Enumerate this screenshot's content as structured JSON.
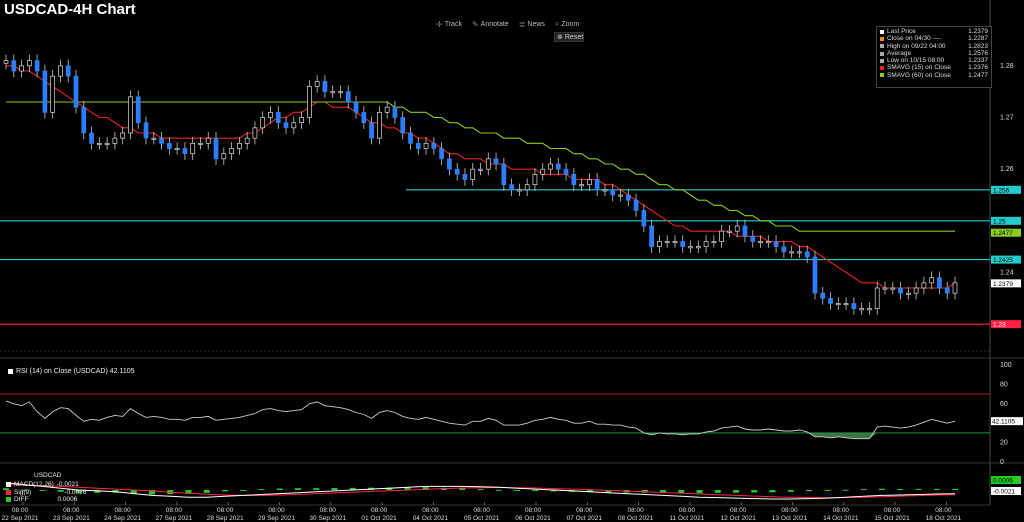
{
  "title": "USDCAD-4H Chart",
  "toolbar": {
    "track": "Track",
    "annotate": "Annotate",
    "news": "News",
    "zoom": "Zoom",
    "reset": "Reset"
  },
  "legend": [
    {
      "label": "Last Price",
      "value": "1.2379",
      "color": "#ffffff"
    },
    {
      "label": "Close on 04/30 ----",
      "value": "1.2287",
      "color": "#ff8800"
    },
    {
      "label": "High on 09/22 04:00",
      "value": "1.2823",
      "color": "#aaaaaa"
    },
    {
      "label": "Average",
      "value": "1.2576",
      "color": "#aaaaaa"
    },
    {
      "label": "Low on 10/15 08:00",
      "value": "1.2337",
      "color": "#aaaaaa"
    },
    {
      "label": "SMAVG (15)  on Close",
      "value": "1.2376",
      "color": "#ee2222"
    },
    {
      "label": "SMAVG (60)  on Close",
      "value": "1.2477",
      "color": "#88cc22"
    }
  ],
  "rsi_label": "RSI (14)  on Close (USDCAD) 42.1105",
  "macd_labels": {
    "header": "USDCAD",
    "macd": "MACD(12,26)",
    "macd_value": "-0.0021",
    "sig": "Sig(9)",
    "sig_value": "-0.0026",
    "diff": "DIFF",
    "diff_value": "0.0006"
  },
  "chart_data": [
    {
      "type": "candlestick",
      "title": "USDCAD-4H Chart",
      "ylim": [
        1.225,
        1.285
      ],
      "yticks": [
        "1.28",
        "1.27",
        "1.26",
        "1.24"
      ],
      "x_tick_labels": [
        [
          "08:00",
          "22 Sep 2021"
        ],
        [
          "08:00",
          "23 Sep 2021"
        ],
        [
          "08:00",
          "24 Sep 2021"
        ],
        [
          "08:00",
          "27 Sep 2021"
        ],
        [
          "08:00",
          "28 Sep 2021"
        ],
        [
          "08:00",
          "29 Sep 2021"
        ],
        [
          "08:00",
          "30 Sep 2021"
        ],
        [
          "08:00",
          "01 Oct 2021"
        ],
        [
          "08:00",
          "04 Oct 2021"
        ],
        [
          "08:00",
          "05 Oct 2021"
        ],
        [
          "08:00",
          "06 Oct 2021"
        ],
        [
          "08:00",
          "07 Oct 2021"
        ],
        [
          "08:00",
          "08 Oct 2021"
        ],
        [
          "08:00",
          "11 Oct 2021"
        ],
        [
          "08:00",
          "12 Oct 2021"
        ],
        [
          "08:00",
          "13 Oct 2021"
        ],
        [
          "08:00",
          "14 Oct 2021"
        ],
        [
          "08:00",
          "15 Oct 2021"
        ],
        [
          "08:00",
          "18 Oct 2021"
        ]
      ],
      "close": [
        1.281,
        1.279,
        1.28,
        1.281,
        1.279,
        1.271,
        1.278,
        1.28,
        1.278,
        1.272,
        1.267,
        1.265,
        1.265,
        1.265,
        1.266,
        1.267,
        1.274,
        1.269,
        1.266,
        1.266,
        1.265,
        1.264,
        1.264,
        1.263,
        1.265,
        1.265,
        1.266,
        1.262,
        1.263,
        1.264,
        1.265,
        1.266,
        1.268,
        1.27,
        1.271,
        1.269,
        1.268,
        1.269,
        1.27,
        1.276,
        1.277,
        1.275,
        1.275,
        1.275,
        1.273,
        1.271,
        1.269,
        1.266,
        1.271,
        1.272,
        1.27,
        1.267,
        1.265,
        1.264,
        1.265,
        1.264,
        1.262,
        1.26,
        1.259,
        1.258,
        1.26,
        1.26,
        1.262,
        1.261,
        1.257,
        1.256,
        1.256,
        1.257,
        1.259,
        1.26,
        1.261,
        1.26,
        1.259,
        1.257,
        1.257,
        1.258,
        1.256,
        1.256,
        1.255,
        1.255,
        1.254,
        1.252,
        1.249,
        1.245,
        1.246,
        1.246,
        1.246,
        1.245,
        1.245,
        1.245,
        1.246,
        1.246,
        1.248,
        1.248,
        1.249,
        1.247,
        1.246,
        1.246,
        1.246,
        1.245,
        1.244,
        1.244,
        1.244,
        1.243,
        1.236,
        1.235,
        1.234,
        1.234,
        1.234,
        1.233,
        1.233,
        1.233,
        1.237,
        1.237,
        1.237,
        1.236,
        1.236,
        1.237,
        1.238,
        1.239,
        1.237,
        1.236,
        1.238
      ],
      "series": [
        {
          "name": "SMAVG (15)  on Close",
          "color": "#ee2222",
          "values": [
            1.28,
            1.28,
            1.279,
            1.279,
            1.278,
            1.277,
            1.276,
            1.275,
            1.274,
            1.273,
            1.272,
            1.271,
            1.27,
            1.27,
            1.269,
            1.268,
            1.268,
            1.267,
            1.267,
            1.267,
            1.266,
            1.266,
            1.266,
            1.266,
            1.266,
            1.266,
            1.266,
            1.266,
            1.266,
            1.266,
            1.266,
            1.267,
            1.267,
            1.268,
            1.269,
            1.27,
            1.27,
            1.271,
            1.271,
            1.272,
            1.273,
            1.273,
            1.272,
            1.272,
            1.272,
            1.271,
            1.27,
            1.269,
            1.269,
            1.268,
            1.268,
            1.267,
            1.267,
            1.266,
            1.266,
            1.265,
            1.264,
            1.263,
            1.263,
            1.262,
            1.262,
            1.262,
            1.261,
            1.261,
            1.261,
            1.26,
            1.26,
            1.26,
            1.26,
            1.259,
            1.259,
            1.259,
            1.259,
            1.258,
            1.258,
            1.258,
            1.258,
            1.257,
            1.257,
            1.256,
            1.255,
            1.254,
            1.253,
            1.252,
            1.251,
            1.25,
            1.249,
            1.249,
            1.248,
            1.248,
            1.248,
            1.248,
            1.248,
            1.248,
            1.247,
            1.247,
            1.247,
            1.247,
            1.246,
            1.246,
            1.246,
            1.246,
            1.245,
            1.245,
            1.244,
            1.243,
            1.242,
            1.241,
            1.24,
            1.239,
            1.238,
            1.238,
            1.238,
            1.237,
            1.237,
            1.237,
            1.237,
            1.237,
            1.237,
            1.237,
            1.237,
            1.237,
            1.238
          ]
        },
        {
          "name": "SMAVG (60)  on Close",
          "color": "#88cc22",
          "values": [
            1.273,
            1.273,
            1.273,
            1.273,
            1.273,
            1.273,
            1.273,
            1.273,
            1.273,
            1.273,
            1.273,
            1.273,
            1.273,
            1.273,
            1.273,
            1.273,
            1.273,
            1.273,
            1.273,
            1.273,
            1.273,
            1.273,
            1.273,
            1.273,
            1.273,
            1.273,
            1.273,
            1.273,
            1.273,
            1.273,
            1.273,
            1.273,
            1.273,
            1.273,
            1.273,
            1.273,
            1.273,
            1.273,
            1.273,
            1.273,
            1.273,
            1.273,
            1.273,
            1.273,
            1.273,
            1.273,
            1.273,
            1.273,
            1.273,
            1.273,
            1.272,
            1.272,
            1.271,
            1.271,
            1.271,
            1.27,
            1.27,
            1.269,
            1.269,
            1.268,
            1.268,
            1.267,
            1.267,
            1.267,
            1.266,
            1.266,
            1.266,
            1.265,
            1.265,
            1.265,
            1.264,
            1.264,
            1.264,
            1.263,
            1.263,
            1.262,
            1.262,
            1.261,
            1.261,
            1.26,
            1.26,
            1.259,
            1.259,
            1.258,
            1.257,
            1.257,
            1.256,
            1.256,
            1.255,
            1.254,
            1.254,
            1.253,
            1.253,
            1.252,
            1.252,
            1.251,
            1.251,
            1.25,
            1.25,
            1.249,
            1.249,
            1.249,
            1.248,
            1.248,
            1.248,
            1.248,
            1.248,
            1.248,
            1.248,
            1.248,
            1.248,
            1.248,
            1.248,
            1.248,
            1.248,
            1.248,
            1.248,
            1.248,
            1.248,
            1.248,
            1.248,
            1.248,
            1.248
          ]
        }
      ],
      "horizontal_lines": [
        {
          "value": 1.256,
          "label": "1.256",
          "color": "#22cccc"
        },
        {
          "value": 1.25,
          "label": "1.25",
          "color": "#22cccc"
        },
        {
          "value": 1.2425,
          "label": "1.2425",
          "color": "#22cccc"
        },
        {
          "value": 1.23,
          "label": "1.23",
          "color": "#ff2244"
        }
      ],
      "price_tags": [
        {
          "value": 1.2477,
          "label": "1.2477",
          "color": "#88cc22"
        },
        {
          "value": 1.2379,
          "label": "1.2379",
          "color": "#ffffff"
        }
      ]
    },
    {
      "type": "line",
      "title": "RSI (14)  on Close (USDCAD) 42.1105",
      "ylim": [
        0,
        100
      ],
      "yticks": [
        "100",
        "80",
        "60",
        "40",
        "20",
        "0"
      ],
      "reference_lines": [
        70,
        30
      ],
      "series": [
        {
          "name": "RSI (14)",
          "color": "#cccccc",
          "values": [
            63,
            60,
            58,
            62,
            52,
            45,
            52,
            56,
            55,
            48,
            42,
            44,
            43,
            46,
            48,
            47,
            55,
            50,
            46,
            47,
            46,
            44,
            44,
            43,
            46,
            46,
            47,
            43,
            44,
            45,
            46,
            48,
            50,
            54,
            55,
            53,
            52,
            53,
            54,
            60,
            62,
            58,
            57,
            56,
            54,
            51,
            49,
            45,
            51,
            53,
            51,
            47,
            45,
            44,
            46,
            44,
            42,
            40,
            39,
            38,
            42,
            42,
            45,
            43,
            38,
            38,
            38,
            40,
            43,
            44,
            46,
            44,
            43,
            40,
            40,
            42,
            39,
            39,
            38,
            38,
            36,
            35,
            30,
            28,
            30,
            29,
            29,
            28,
            29,
            29,
            31,
            32,
            35,
            36,
            37,
            34,
            33,
            33,
            34,
            33,
            32,
            32,
            33,
            31,
            26,
            26,
            25,
            26,
            25,
            24,
            24,
            24,
            36,
            37,
            36,
            35,
            36,
            38,
            41,
            44,
            42,
            40,
            42
          ]
        }
      ],
      "fill_below": 30
    },
    {
      "type": "histogram",
      "title": "MACD(12,26)",
      "series": [
        {
          "name": "MACD(12,26)",
          "color": "#ffffff",
          "values": [
            0.004,
            0.003,
            0.002,
            0.001,
            0.0,
            -0.0005,
            -0.001,
            -0.002,
            -0.003,
            -0.0035,
            -0.004,
            -0.004,
            -0.0035,
            -0.003,
            -0.0025,
            -0.002,
            -0.0015,
            -0.001,
            -0.0005,
            0.0,
            0.0005,
            0.001,
            0.0015,
            0.002,
            0.002,
            0.002,
            0.0018,
            0.0015,
            0.001,
            0.0005,
            0.0,
            -0.0005,
            -0.001,
            -0.0015,
            -0.002,
            -0.0025,
            -0.003,
            -0.0035,
            -0.004,
            -0.0042,
            -0.0045,
            -0.0048,
            -0.005,
            -0.005,
            -0.0048,
            -0.0045,
            -0.004,
            -0.0035,
            -0.003,
            -0.0028,
            -0.0025,
            -0.0022,
            -0.0021
          ]
        },
        {
          "name": "Sig(9)",
          "color": "#ff2244",
          "values": [
            0.003,
            0.0028,
            0.0024,
            0.002,
            0.0015,
            0.001,
            0.0005,
            0.0,
            -0.0005,
            -0.0012,
            -0.0018,
            -0.0024,
            -0.0028,
            -0.003,
            -0.003,
            -0.0028,
            -0.0025,
            -0.002,
            -0.0016,
            -0.0012,
            -0.0008,
            -0.0004,
            0.0,
            0.0004,
            0.0008,
            0.0011,
            0.0013,
            0.0014,
            0.0013,
            0.0011,
            0.0008,
            0.0005,
            0.0002,
            -0.0002,
            -0.0006,
            -0.001,
            -0.0014,
            -0.0018,
            -0.0022,
            -0.0026,
            -0.003,
            -0.0034,
            -0.0037,
            -0.004,
            -0.0042,
            -0.0043,
            -0.0042,
            -0.004,
            -0.0037,
            -0.0034,
            -0.0031,
            -0.0028,
            -0.0026
          ]
        },
        {
          "name": "DIFF",
          "color": "#22cc22",
          "values": [
            0.001,
            0.0002,
            -0.0004,
            -0.001,
            -0.0015,
            -0.0015,
            -0.0015,
            -0.002,
            -0.0025,
            -0.0023,
            -0.0022,
            -0.0016,
            -0.0007,
            0.0,
            0.0005,
            0.0008,
            0.001,
            0.001,
            0.0011,
            0.0012,
            0.0013,
            0.0014,
            0.0015,
            0.0016,
            0.0012,
            0.0009,
            0.0005,
            0.0001,
            -0.0003,
            -0.0006,
            -0.0008,
            -0.001,
            -0.0012,
            -0.0013,
            -0.0014,
            -0.0015,
            -0.0016,
            -0.0017,
            -0.0018,
            -0.0016,
            -0.0015,
            -0.0014,
            -0.0013,
            -0.001,
            -0.0006,
            -0.0002,
            0.0002,
            0.0005,
            0.0007,
            0.0006,
            0.0006,
            0.0006,
            0.0006
          ]
        }
      ],
      "tags": [
        {
          "label": "0.0006",
          "color": "#22cc22"
        },
        {
          "label": "-0.0021",
          "color": "#ffffff"
        }
      ]
    }
  ]
}
